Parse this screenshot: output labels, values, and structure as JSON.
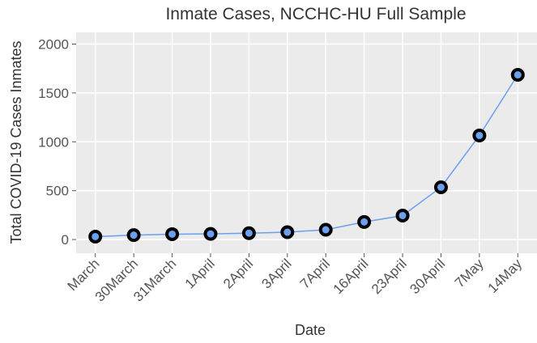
{
  "chart_data": {
    "type": "line",
    "title": "Inmate Cases, NCCHC-HU Full Sample",
    "x_label": "Date",
    "y_label": "Total COVID-19 Cases Inmates",
    "categories": [
      "March",
      "30March",
      "31March",
      "1April",
      "2April",
      "3April",
      "7April",
      "16April",
      "23April",
      "30April",
      "7May",
      "14May"
    ],
    "series": [
      {
        "name": "Inmate Cases",
        "color": "#6b9ff0",
        "values": [
          30,
          45,
          55,
          58,
          65,
          75,
          100,
          180,
          245,
          535,
          1065,
          1685
        ]
      }
    ],
    "ylim": [
      -140,
      2120
    ],
    "yticks": [
      0,
      500,
      1000,
      1500,
      2000
    ],
    "grid": true
  }
}
